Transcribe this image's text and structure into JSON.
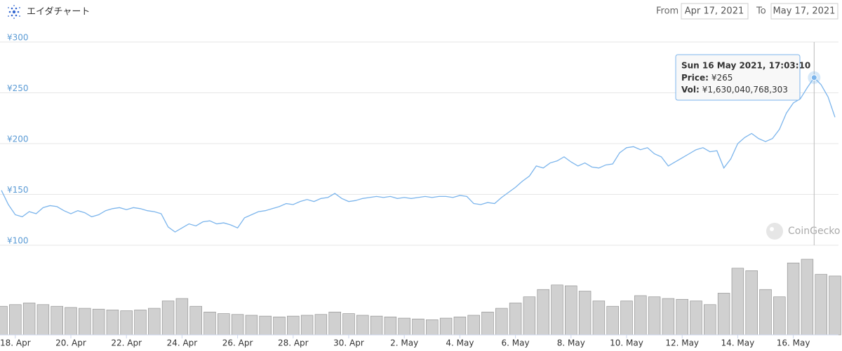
{
  "header": {
    "title": "エイダチャート",
    "from_label": "From",
    "from": "Apr 17, 2021",
    "to_label": "To",
    "to": "May 17, 2021"
  },
  "chart_data": {
    "type": "line",
    "xlim": [
      "2021-04-17T12:00",
      "2021-05-17T12:00"
    ],
    "xticks": [
      {
        "value": "2021-04-18T00:00",
        "label": "18. Apr"
      },
      {
        "value": "2021-04-20T00:00",
        "label": "20. Apr"
      },
      {
        "value": "2021-04-22T00:00",
        "label": "22. Apr"
      },
      {
        "value": "2021-04-24T00:00",
        "label": "24. Apr"
      },
      {
        "value": "2021-04-26T00:00",
        "label": "26. Apr"
      },
      {
        "value": "2021-04-28T00:00",
        "label": "28. Apr"
      },
      {
        "value": "2021-04-30T00:00",
        "label": "30. Apr"
      },
      {
        "value": "2021-05-02T00:00",
        "label": "2. May"
      },
      {
        "value": "2021-05-04T00:00",
        "label": "4. May"
      },
      {
        "value": "2021-05-06T00:00",
        "label": "6. May"
      },
      {
        "value": "2021-05-08T00:00",
        "label": "8. May"
      },
      {
        "value": "2021-05-10T00:00",
        "label": "10. May"
      },
      {
        "value": "2021-05-12T00:00",
        "label": "12. May"
      },
      {
        "value": "2021-05-14T00:00",
        "label": "14. May"
      },
      {
        "value": "2021-05-16T00:00",
        "label": "16. May"
      }
    ],
    "ylim": [
      100,
      300
    ],
    "yticks": [
      {
        "value": 100,
        "label": "¥100"
      },
      {
        "value": 150,
        "label": "¥150"
      },
      {
        "value": 200,
        "label": "¥200"
      },
      {
        "value": 250,
        "label": "¥250"
      },
      {
        "value": 300,
        "label": "¥300"
      }
    ],
    "grid": true,
    "series": [
      {
        "name": "Price",
        "color": "#7cb5ec",
        "values": [
          154,
          140,
          130,
          128,
          133,
          131,
          137,
          139,
          138,
          134,
          131,
          134,
          132,
          128,
          130,
          134,
          136,
          137,
          135,
          137,
          136,
          134,
          133,
          131,
          118,
          113,
          117,
          121,
          119,
          123,
          124,
          121,
          122,
          120,
          117,
          127,
          130,
          133,
          134,
          136,
          138,
          141,
          140,
          143,
          145,
          143,
          146,
          147,
          151,
          146,
          143,
          144,
          146,
          147,
          148,
          147,
          148,
          146,
          147,
          146,
          147,
          148,
          147,
          148,
          148,
          147,
          149,
          148,
          141,
          140,
          142,
          141,
          147,
          152,
          157,
          163,
          168,
          178,
          176,
          181,
          183,
          187,
          182,
          178,
          181,
          177,
          176,
          179,
          180,
          191,
          196,
          197,
          194,
          196,
          190,
          187,
          178,
          182,
          186,
          190,
          194,
          196,
          192,
          193,
          176,
          185,
          200,
          206,
          210,
          205,
          202,
          205,
          214,
          230,
          240,
          244,
          255,
          265,
          258,
          246,
          226
        ]
      },
      {
        "name": "Vol",
        "type": "bar",
        "color": "#d0d0d0",
        "values": [
          700000000000.0,
          740000000000.0,
          780000000000.0,
          740000000000.0,
          700000000000.0,
          670000000000.0,
          650000000000.0,
          630000000000.0,
          610000000000.0,
          590000000000.0,
          610000000000.0,
          650000000000.0,
          830000000000.0,
          890000000000.0,
          700000000000.0,
          560000000000.0,
          520000000000.0,
          500000000000.0,
          480000000000.0,
          460000000000.0,
          440000000000.0,
          460000000000.0,
          480000000000.0,
          500000000000.0,
          560000000000.0,
          520000000000.0,
          480000000000.0,
          460000000000.0,
          440000000000.0,
          410000000000.0,
          390000000000.0,
          370000000000.0,
          410000000000.0,
          440000000000.0,
          480000000000.0,
          560000000000.0,
          650000000000.0,
          780000000000.0,
          930000000000.0,
          1110000000000.0,
          1220000000000.0,
          1200000000000.0,
          1070000000000.0,
          830000000000.0,
          700000000000.0,
          830000000000.0,
          960000000000.0,
          930000000000.0,
          890000000000.0,
          870000000000.0,
          830000000000.0,
          740000000000.0,
          1020000000000.0,
          1630000000000.0,
          1570000000000.0,
          1110000000000.0,
          930000000000.0,
          1760000000000.0,
          1850000000000.0,
          1480000000000.0,
          1440000000000.0
        ]
      }
    ],
    "tooltip": {
      "title": "Sun 16 May 2021, 17:03:10",
      "price_label": "Price:",
      "price": "¥265",
      "vol_label": "Vol:",
      "vol": "¥1,630,040,768,303"
    },
    "watermark": "CoinGecko"
  }
}
